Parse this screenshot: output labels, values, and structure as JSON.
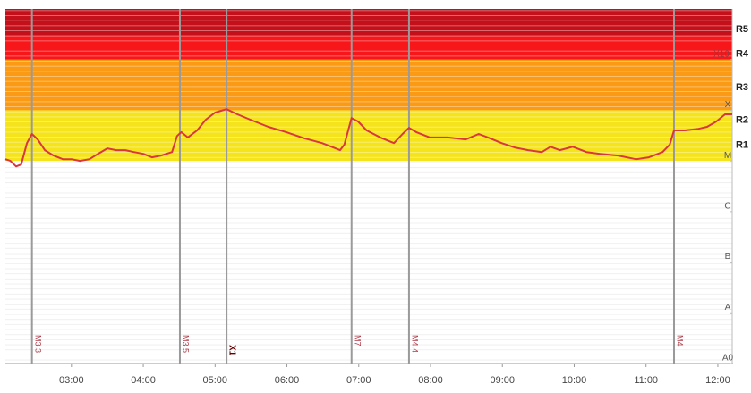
{
  "chart_data": {
    "type": "line",
    "log": true,
    "color": "#d9363e",
    "xlim": [
      2.08,
      12.2
    ],
    "xticks": [
      {
        "value": 3,
        "label": "03:00"
      },
      {
        "value": 4,
        "label": "04:00"
      },
      {
        "value": 5,
        "label": "05:00"
      },
      {
        "value": 6,
        "label": "06:00"
      },
      {
        "value": 7,
        "label": "07:00"
      },
      {
        "value": 8,
        "label": "08:00"
      },
      {
        "value": 9,
        "label": "09:00"
      },
      {
        "value": 10,
        "label": "10:00"
      },
      {
        "value": 11,
        "label": "11:00"
      },
      {
        "value": 12,
        "label": "12:00"
      }
    ],
    "ylim": [
      1e-09,
      0.01
    ],
    "yticks": [
      {
        "value": 1e-09,
        "label": "A0"
      },
      {
        "value": 1e-08,
        "label": "A"
      },
      {
        "value": 1e-07,
        "label": "B"
      },
      {
        "value": 1e-06,
        "label": "C"
      },
      {
        "value": 1e-05,
        "label": "M"
      },
      {
        "value": 0.0001,
        "label": "X"
      },
      {
        "value": 0.001,
        "label": "X10"
      }
    ],
    "scale_labels": [
      {
        "value": 1.6e-05,
        "label": "R1"
      },
      {
        "value": 5e-05,
        "label": "R2"
      },
      {
        "value": 0.00022,
        "label": "R3"
      },
      {
        "value": 0.001,
        "label": "R4"
      },
      {
        "value": 0.0031,
        "label": "R5"
      }
    ],
    "bands": [
      {
        "from": 1e-05,
        "to": 0.0001,
        "color": "#f5e41c"
      },
      {
        "from": 0.0001,
        "to": 0.001,
        "color": "#fb9a14"
      },
      {
        "from": 0.001,
        "to": 0.003,
        "color": "#f7161a"
      },
      {
        "from": 0.003,
        "to": 0.01,
        "color": "#c4101a"
      }
    ],
    "flares": [
      {
        "x": 2.45,
        "label": "M3.3"
      },
      {
        "x": 4.51,
        "label": "M3.5"
      },
      {
        "x": 5.16,
        "label": "X1"
      },
      {
        "x": 6.9,
        "label": "M7"
      },
      {
        "x": 7.7,
        "label": "M4.4"
      },
      {
        "x": 11.39,
        "label": "M4"
      }
    ],
    "x": [
      2.08,
      2.15,
      2.23,
      2.3,
      2.38,
      2.45,
      2.53,
      2.63,
      2.75,
      2.88,
      3.0,
      3.12,
      3.25,
      3.37,
      3.5,
      3.62,
      3.75,
      3.87,
      4.0,
      4.12,
      4.25,
      4.4,
      4.47,
      4.53,
      4.62,
      4.75,
      4.87,
      5.0,
      5.16,
      5.31,
      5.49,
      5.74,
      5.99,
      6.24,
      6.49,
      6.74,
      6.8,
      6.9,
      6.99,
      7.11,
      7.3,
      7.49,
      7.61,
      7.7,
      7.8,
      7.99,
      8.24,
      8.49,
      8.67,
      8.8,
      8.99,
      9.17,
      9.36,
      9.55,
      9.67,
      9.8,
      9.98,
      10.17,
      10.36,
      10.61,
      10.86,
      11.04,
      11.23,
      11.33,
      11.39,
      11.54,
      11.73,
      11.85,
      11.98,
      12.1,
      12.2
    ],
    "values": [
      1.08e-05,
      1e-05,
      7.8e-06,
      8.5e-06,
      2.25e-05,
      3.4e-05,
      2.65e-05,
      1.63e-05,
      1.28e-05,
      1.08e-05,
      1.08e-05,
      1e-05,
      1.08e-05,
      1.38e-05,
      1.77e-05,
      1.63e-05,
      1.63e-05,
      1.5e-05,
      1.38e-05,
      1.18e-05,
      1.28e-05,
      1.5e-05,
      3.1e-05,
      3.7e-05,
      2.9e-05,
      4e-05,
      6.5e-05,
      9e-05,
      0.000105,
      8.3e-05,
      6.5e-05,
      4.7e-05,
      3.7e-05,
      2.8e-05,
      2.25e-05,
      1.63e-05,
      2.1e-05,
      7e-05,
      6e-05,
      4e-05,
      2.9e-05,
      2.25e-05,
      3.4e-05,
      4.5e-05,
      3.7e-05,
      2.9e-05,
      2.9e-05,
      2.65e-05,
      3.4e-05,
      2.9e-05,
      2.25e-05,
      1.84e-05,
      1.63e-05,
      1.5e-05,
      1.9e-05,
      1.63e-05,
      1.9e-05,
      1.5e-05,
      1.38e-05,
      1.28e-05,
      1.08e-05,
      1.18e-05,
      1.5e-05,
      2.1e-05,
      4e-05,
      4e-05,
      4.3e-05,
      4.7e-05,
      6e-05,
      8.3e-05,
      8.3e-05
    ]
  }
}
